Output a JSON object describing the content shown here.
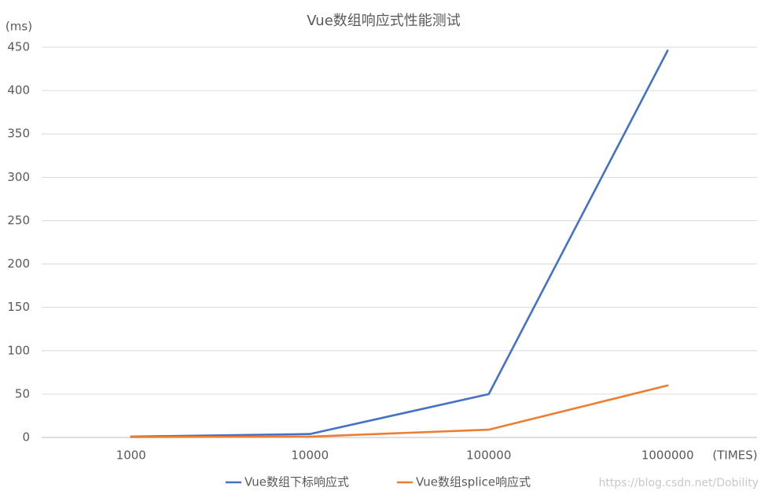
{
  "chart_data": {
    "type": "line",
    "title": "Vue数组响应式性能测试",
    "y_label": "(ms)",
    "x_label": "(TIMES)",
    "categories": [
      "1000",
      "10000",
      "100000",
      "1000000"
    ],
    "series": [
      {
        "name": "Vue数组下标响应式",
        "color": "#4472c4",
        "values": [
          1,
          4,
          50,
          446
        ]
      },
      {
        "name": "Vue数组splice响应式",
        "color": "#ed7d31",
        "values": [
          0.5,
          1,
          9,
          60
        ]
      }
    ],
    "ylim": [
      0,
      450
    ],
    "yticks": [
      0,
      50,
      100,
      150,
      200,
      250,
      300,
      350,
      400,
      450
    ],
    "grid": true,
    "legend": "bottom",
    "watermark": "https://blog.csdn.net/Dobility"
  }
}
